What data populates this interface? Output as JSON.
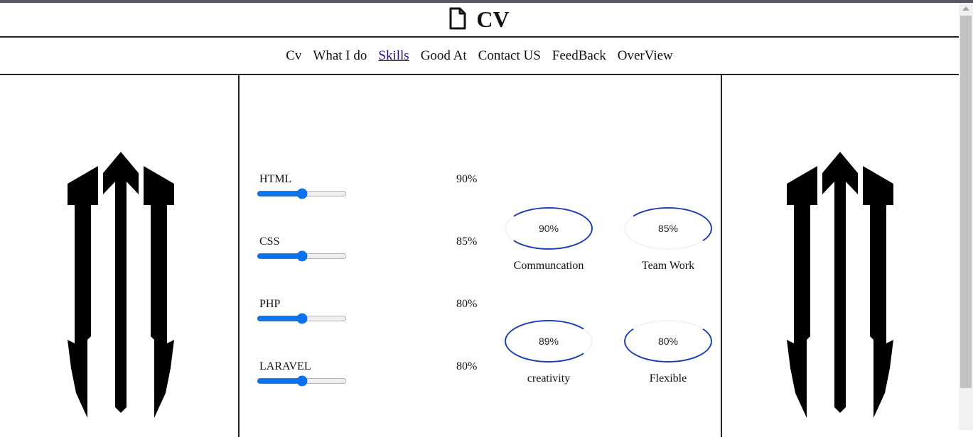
{
  "brand": {
    "title": "CV",
    "icon": "file-icon"
  },
  "nav": [
    {
      "label": "Cv",
      "active": false
    },
    {
      "label": "What I do",
      "active": false
    },
    {
      "label": "Skills",
      "active": true
    },
    {
      "label": "Good At",
      "active": false
    },
    {
      "label": "Contact US",
      "active": false
    },
    {
      "label": "FeedBack",
      "active": false
    },
    {
      "label": "OverView",
      "active": false
    }
  ],
  "skills": [
    {
      "name": "HTML",
      "percent_label": "90%",
      "slider_value": 0.5
    },
    {
      "name": "CSS",
      "percent_label": "85%",
      "slider_value": 0.5
    },
    {
      "name": "PHP",
      "percent_label": "80%",
      "slider_value": 0.5
    },
    {
      "name": "LARAVEL",
      "percent_label": "80%",
      "slider_value": 0.5
    }
  ],
  "abilities": [
    {
      "value": "90%",
      "label": "Communcation"
    },
    {
      "value": "85%",
      "label": "Team Work"
    },
    {
      "value": "89%",
      "label": "creativity"
    },
    {
      "value": "80%",
      "label": "Flexible"
    }
  ],
  "colors": {
    "accent": "#0a74f0",
    "ellipse": "#1f3fb6",
    "active_link": "#1a0dab"
  }
}
